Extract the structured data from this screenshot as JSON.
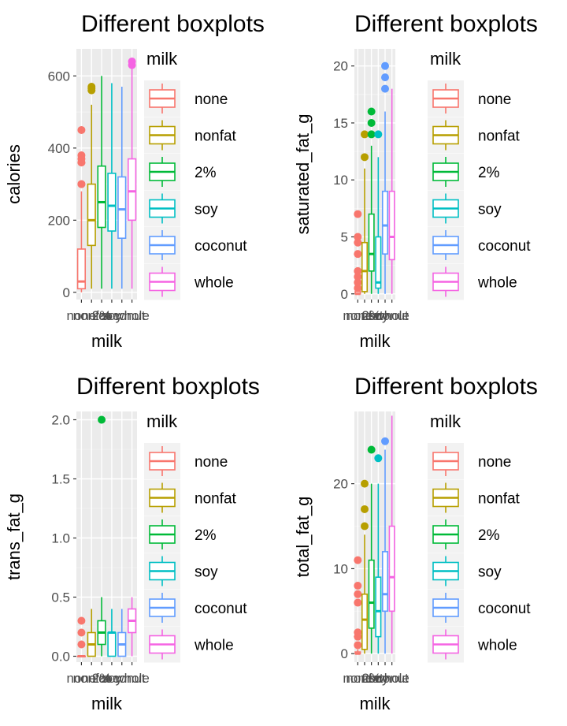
{
  "chart_data": [
    {
      "type": "box",
      "title": "Different boxplots",
      "xlabel": "milk",
      "ylabel": "calories",
      "ylim": [
        -20,
        675
      ],
      "yticks": [
        0,
        200,
        400,
        600
      ],
      "legend": {
        "title": "milk",
        "position": "right"
      },
      "categories": [
        "none",
        "nonfat",
        "2%",
        "soy",
        "coconut",
        "whole"
      ],
      "series": [
        {
          "name": "none",
          "color": "#F8766D",
          "q1": 10,
          "median": 30,
          "q3": 120,
          "whisker_low": 0,
          "whisker_high": 280,
          "outliers": [
            300,
            300,
            360,
            360,
            370,
            380,
            450
          ]
        },
        {
          "name": "nonfat",
          "color": "#B79F00",
          "q1": 130,
          "median": 200,
          "q3": 300,
          "whisker_low": 10,
          "whisker_high": 520,
          "outliers": [
            560,
            565,
            570
          ]
        },
        {
          "name": "2%",
          "color": "#00BA38",
          "q1": 180,
          "median": 250,
          "q3": 350,
          "whisker_low": 10,
          "whisker_high": 600,
          "outliers": []
        },
        {
          "name": "soy",
          "color": "#00BFC4",
          "q1": 170,
          "median": 240,
          "q3": 330,
          "whisker_low": 10,
          "whisker_high": 580,
          "outliers": []
        },
        {
          "name": "coconut",
          "color": "#619CFF",
          "q1": 150,
          "median": 230,
          "q3": 320,
          "whisker_low": 10,
          "whisker_high": 570,
          "outliers": []
        },
        {
          "name": "whole",
          "color": "#F564E3",
          "q1": 200,
          "median": 280,
          "q3": 370,
          "whisker_low": 10,
          "whisker_high": 620,
          "outliers": [
            630,
            640
          ]
        }
      ]
    },
    {
      "type": "box",
      "title": "Different boxplots",
      "xlabel": "milk",
      "ylabel": "saturated_fat_g",
      "ylim": [
        -0.5,
        21.5
      ],
      "yticks": [
        0,
        5,
        10,
        15,
        20
      ],
      "legend": {
        "title": "milk",
        "position": "right"
      },
      "categories": [
        "none",
        "nonfat",
        "2%",
        "soy",
        "coconut",
        "whole"
      ],
      "series": [
        {
          "name": "none",
          "color": "#F8766D",
          "q1": 0,
          "median": 0,
          "q3": 0.2,
          "whisker_low": 0,
          "whisker_high": 0.3,
          "outliers": [
            0.5,
            1,
            1.5,
            2,
            3.5,
            4.5,
            5,
            7
          ]
        },
        {
          "name": "nonfat",
          "color": "#B79F00",
          "q1": 0.2,
          "median": 2,
          "q3": 4.5,
          "whisker_low": 0,
          "whisker_high": 11,
          "outliers": [
            12,
            14
          ]
        },
        {
          "name": "2%",
          "color": "#00BA38",
          "q1": 2,
          "median": 3.5,
          "q3": 7,
          "whisker_low": 0,
          "whisker_high": 13,
          "outliers": [
            14,
            15,
            16
          ]
        },
        {
          "name": "soy",
          "color": "#00BFC4",
          "q1": 0.5,
          "median": 1,
          "q3": 5,
          "whisker_low": 0,
          "whisker_high": 12,
          "outliers": [
            14
          ]
        },
        {
          "name": "coconut",
          "color": "#619CFF",
          "q1": 3.5,
          "median": 6,
          "q3": 9,
          "whisker_low": 0,
          "whisker_high": 16,
          "outliers": [
            18,
            19,
            20
          ]
        },
        {
          "name": "whole",
          "color": "#F564E3",
          "q1": 3,
          "median": 5,
          "q3": 9,
          "whisker_low": 0,
          "whisker_high": 18,
          "outliers": []
        }
      ]
    },
    {
      "type": "box",
      "title": "Different boxplots",
      "xlabel": "milk",
      "ylabel": "trans_fat_g",
      "ylim": [
        -0.05,
        2.07
      ],
      "yticks": [
        0.0,
        0.5,
        1.0,
        1.5,
        2.0
      ],
      "ytick_labels": [
        "0.0",
        "0.5",
        "1.0",
        "1.5",
        "2.0"
      ],
      "legend": {
        "title": "milk",
        "position": "right"
      },
      "categories": [
        "none",
        "nonfat",
        "2%",
        "soy",
        "coconut",
        "whole"
      ],
      "series": [
        {
          "name": "none",
          "color": "#F8766D",
          "q1": 0,
          "median": 0,
          "q3": 0,
          "whisker_low": 0,
          "whisker_high": 0,
          "outliers": [
            0.1,
            0.2,
            0.3
          ]
        },
        {
          "name": "nonfat",
          "color": "#B79F00",
          "q1": 0,
          "median": 0.1,
          "q3": 0.2,
          "whisker_low": 0,
          "whisker_high": 0.4,
          "outliers": []
        },
        {
          "name": "2%",
          "color": "#00BA38",
          "q1": 0.1,
          "median": 0.2,
          "q3": 0.3,
          "whisker_low": 0,
          "whisker_high": 0.5,
          "outliers": [
            2.0
          ]
        },
        {
          "name": "soy",
          "color": "#00BFC4",
          "q1": 0,
          "median": 0.2,
          "q3": 0.2,
          "whisker_low": 0,
          "whisker_high": 0.4,
          "outliers": []
        },
        {
          "name": "coconut",
          "color": "#619CFF",
          "q1": 0,
          "median": 0.1,
          "q3": 0.2,
          "whisker_low": 0,
          "whisker_high": 0.4,
          "outliers": []
        },
        {
          "name": "whole",
          "color": "#F564E3",
          "q1": 0.2,
          "median": 0.3,
          "q3": 0.4,
          "whisker_low": 0,
          "whisker_high": 0.5,
          "outliers": []
        }
      ]
    },
    {
      "type": "box",
      "title": "Different boxplots",
      "xlabel": "milk",
      "ylabel": "total_fat_g",
      "ylim": [
        -1,
        28.5
      ],
      "yticks": [
        0,
        10,
        20
      ],
      "legend": {
        "title": "milk",
        "position": "right"
      },
      "categories": [
        "none",
        "nonfat",
        "2%",
        "soy",
        "coconut",
        "whole"
      ],
      "series": [
        {
          "name": "none",
          "color": "#F8766D",
          "q1": 0,
          "median": 0,
          "q3": 0.2,
          "whisker_low": 0,
          "whisker_high": 0.5,
          "outliers": [
            1,
            2,
            2.5,
            6,
            7,
            8,
            11
          ]
        },
        {
          "name": "nonfat",
          "color": "#B79F00",
          "q1": 0.5,
          "median": 4,
          "q3": 7,
          "whisker_low": 0,
          "whisker_high": 14,
          "outliers": [
            15,
            17,
            20
          ]
        },
        {
          "name": "2%",
          "color": "#00BA38",
          "q1": 3,
          "median": 6,
          "q3": 11,
          "whisker_low": 0,
          "whisker_high": 20,
          "outliers": [
            24
          ]
        },
        {
          "name": "soy",
          "color": "#00BFC4",
          "q1": 2,
          "median": 5,
          "q3": 9,
          "whisker_low": 0,
          "whisker_high": 20,
          "outliers": [
            23
          ]
        },
        {
          "name": "coconut",
          "color": "#619CFF",
          "q1": 5,
          "median": 7,
          "q3": 12,
          "whisker_low": 0,
          "whisker_high": 24,
          "outliers": [
            25
          ]
        },
        {
          "name": "whole",
          "color": "#F564E3",
          "q1": 5,
          "median": 9,
          "q3": 15,
          "whisker_low": 0,
          "whisker_high": 28,
          "outliers": []
        }
      ]
    }
  ]
}
